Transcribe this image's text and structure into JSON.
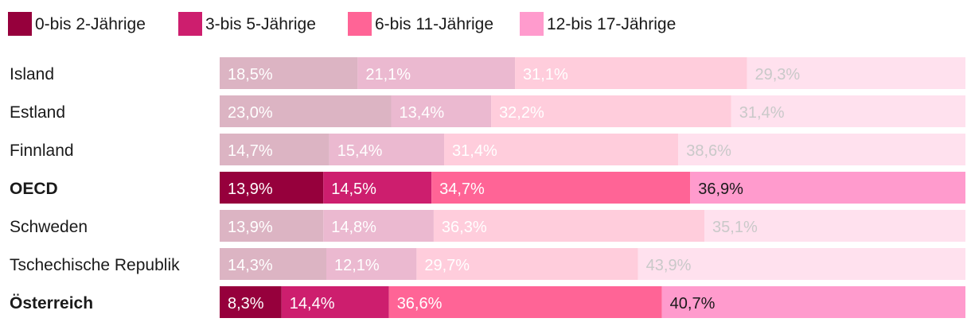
{
  "chart_data": {
    "type": "bar",
    "orientation": "horizontal",
    "stacked": true,
    "normalized": true,
    "title": "",
    "xlabel": "",
    "ylabel": "",
    "xlim": [
      0,
      100
    ],
    "legend_position": "top-left",
    "categories": [
      "Island",
      "Estland",
      "Finnland",
      "OECD",
      "Schweden",
      "Tschechische Republik",
      "Österreich"
    ],
    "highlighted": [
      "OECD",
      "Österreich"
    ],
    "series": [
      {
        "name": "0-bis 2-Jährige",
        "color": "#96003c",
        "muted_color": "#dcb4c3",
        "values": [
          18.5,
          23.0,
          14.7,
          13.9,
          13.9,
          14.3,
          8.3
        ],
        "labels": [
          "18,5%",
          "23,0%",
          "14,7%",
          "13,9%",
          "13,9%",
          "14,3%",
          "8,3%"
        ]
      },
      {
        "name": "3-bis 5-Jährige",
        "color": "#cd1e6e",
        "muted_color": "#ebb9d0",
        "values": [
          21.1,
          13.4,
          15.4,
          14.5,
          14.8,
          12.1,
          14.4
        ],
        "labels": [
          "21,1%",
          "13,4%",
          "15,4%",
          "14,5%",
          "14,8%",
          "12,1%",
          "14,4%"
        ]
      },
      {
        "name": "6-bis 11-Jährige",
        "color": "#ff6496",
        "muted_color": "#ffcddc",
        "values": [
          31.1,
          32.2,
          31.4,
          34.7,
          36.3,
          29.7,
          36.6
        ],
        "labels": [
          "31,1%",
          "32,2%",
          "31,4%",
          "34,7%",
          "36,3%",
          "29,7%",
          "36,6%"
        ]
      },
      {
        "name": "12-bis 17-Jährige",
        "color": "#ff9bcd",
        "muted_color": "#ffe1ee",
        "values": [
          29.3,
          31.4,
          38.6,
          36.9,
          35.1,
          43.9,
          40.7
        ],
        "labels": [
          "29,3%",
          "31,4%",
          "38,6%",
          "36,9%",
          "35,1%",
          "43,9%",
          "40,7%"
        ]
      }
    ]
  }
}
